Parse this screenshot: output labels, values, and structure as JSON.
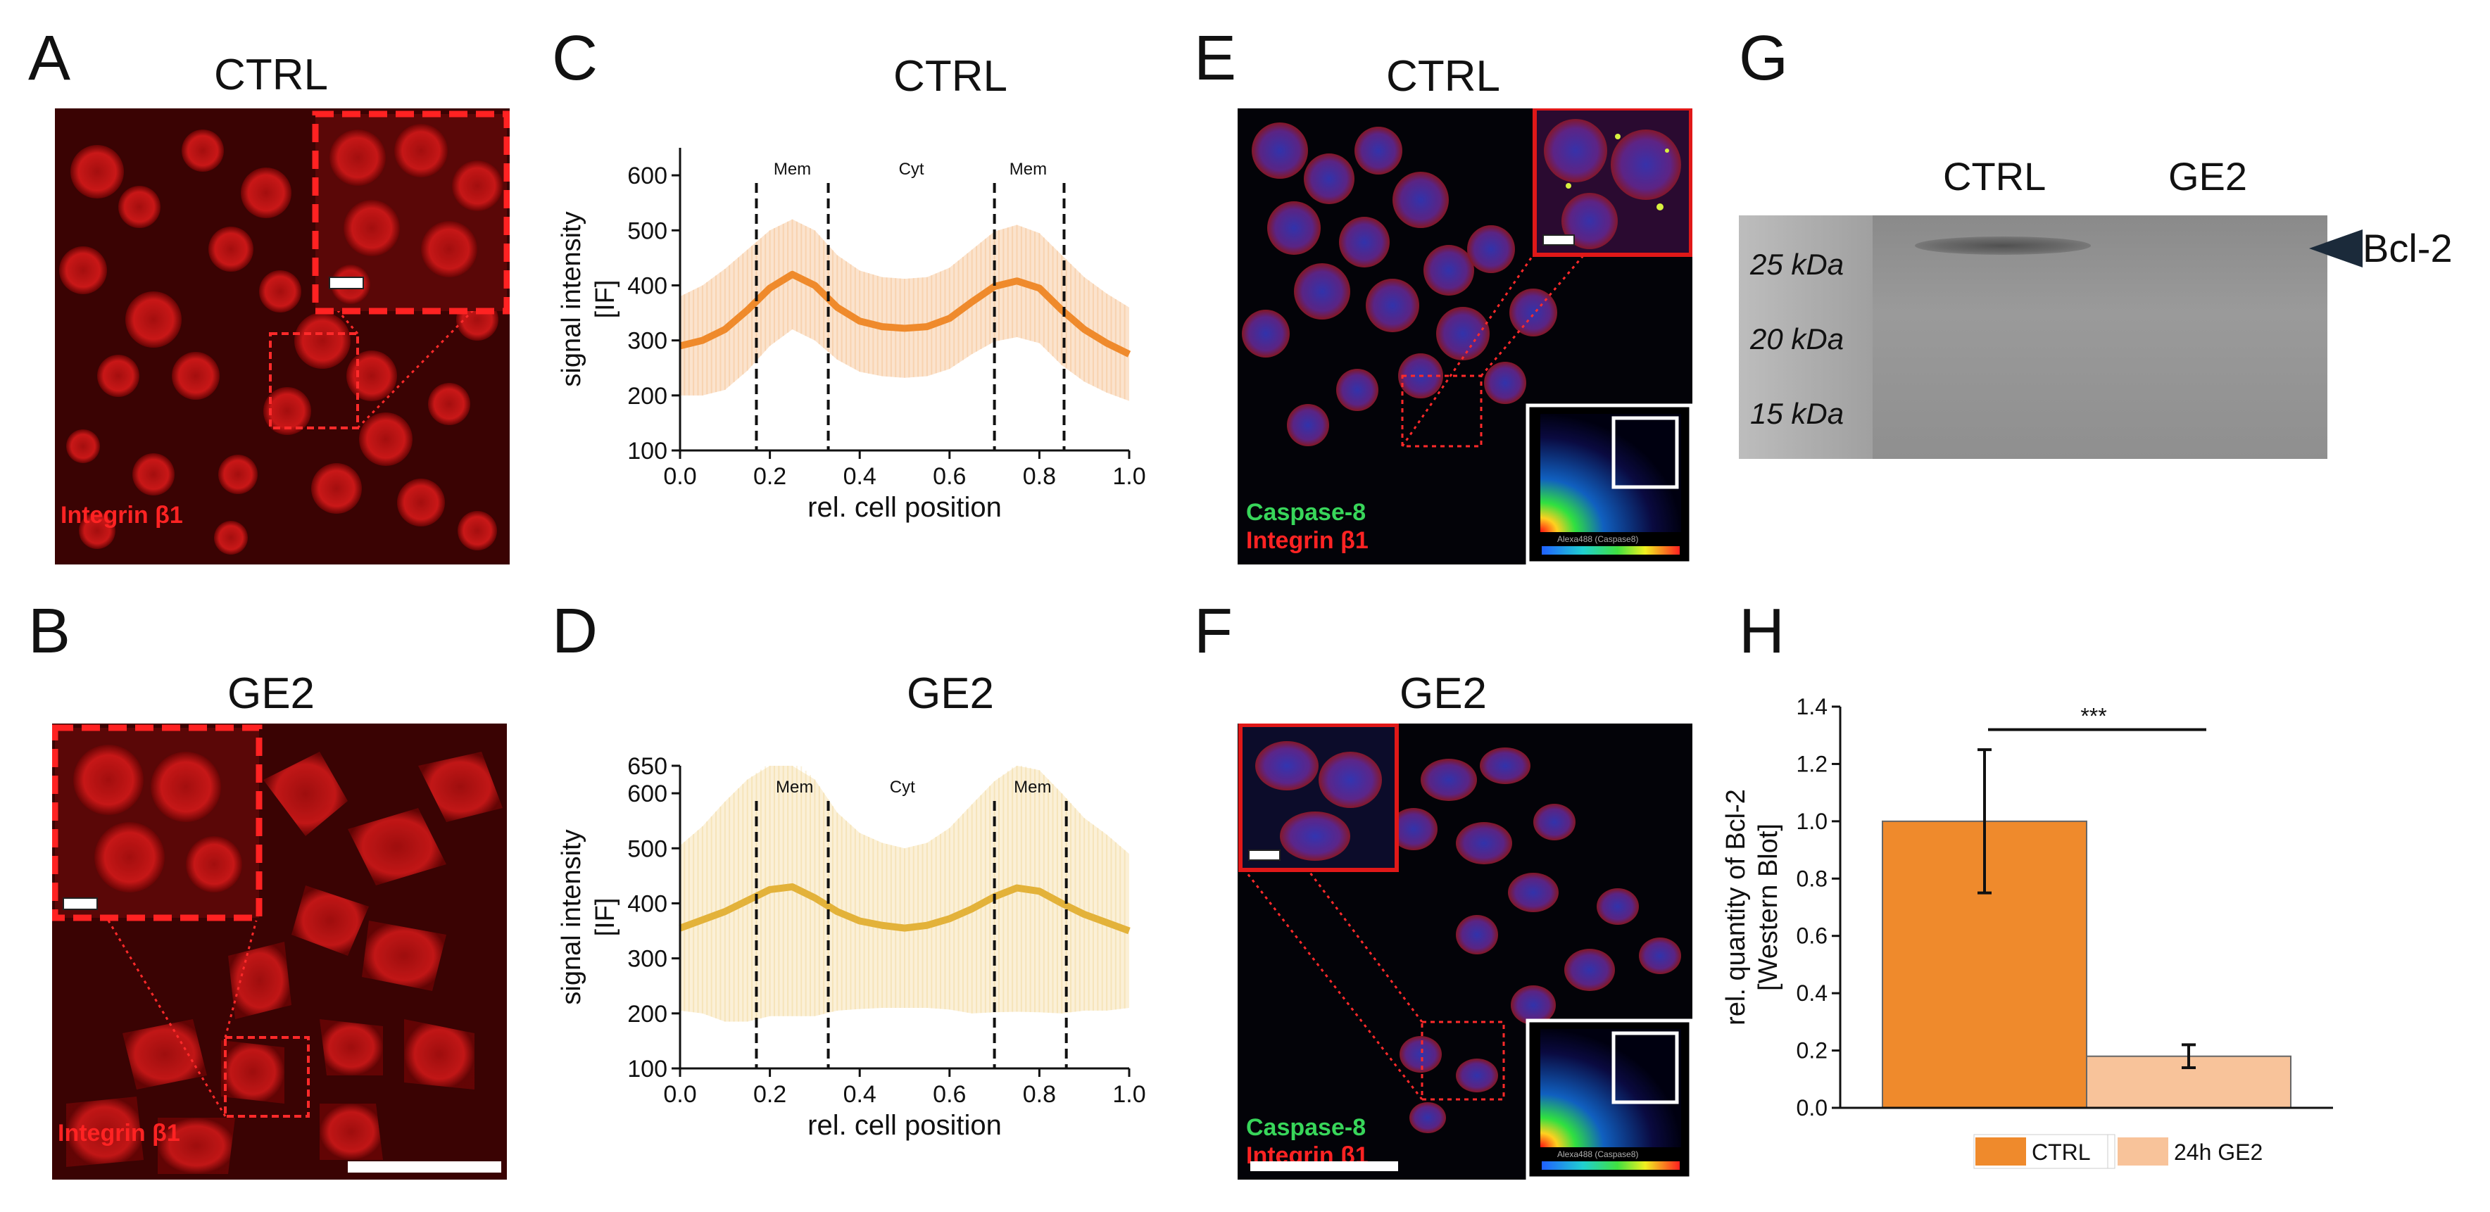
{
  "panels": {
    "A": {
      "letter": "A",
      "title": "CTRL",
      "stain": "Integrin β1"
    },
    "B": {
      "letter": "B",
      "title": "GE2",
      "stain": "Integrin β1"
    },
    "C": {
      "letter": "C",
      "title": "CTRL"
    },
    "D": {
      "letter": "D",
      "title": "GE2"
    },
    "E": {
      "letter": "E",
      "title": "CTRL",
      "stain1": "Caspase-8",
      "stain2": "Integrin β1"
    },
    "F": {
      "letter": "F",
      "title": "GE2",
      "stain1": "Caspase-8",
      "stain2": "Integrin β1"
    },
    "G": {
      "letter": "G"
    },
    "H": {
      "letter": "H"
    }
  },
  "colocalization": {
    "x_axis": "Alexa488 (Caspase8)"
  },
  "western_blot": {
    "lanes": [
      "CTRL",
      "GE2"
    ],
    "markers": [
      "25 kDa",
      "20 kDa",
      "15 kDa"
    ],
    "target": "Bcl-2"
  },
  "chart_data": [
    {
      "id": "C",
      "type": "line",
      "title": "CTRL",
      "xlabel": "rel. cell position",
      "ylabel_line1": "signal intensity",
      "ylabel_line2": "[IF]",
      "xlim": [
        0.0,
        1.0
      ],
      "ylim": [
        100,
        650
      ],
      "xticks": [
        "0.0",
        "0.2",
        "0.4",
        "0.6",
        "0.8",
        "1.0"
      ],
      "yticks": [
        "100",
        "200",
        "300",
        "400",
        "500",
        "600"
      ],
      "color": "#ef8a2c",
      "band_color": "#fbe0c8",
      "x": [
        0.0,
        0.05,
        0.1,
        0.15,
        0.2,
        0.25,
        0.3,
        0.35,
        0.4,
        0.45,
        0.5,
        0.55,
        0.6,
        0.65,
        0.7,
        0.75,
        0.8,
        0.85,
        0.9,
        0.95,
        1.0
      ],
      "mean": [
        290,
        300,
        320,
        355,
        395,
        420,
        400,
        360,
        335,
        325,
        322,
        325,
        340,
        370,
        398,
        408,
        395,
        355,
        320,
        295,
        275
      ],
      "sd": [
        90,
        100,
        110,
        110,
        105,
        100,
        100,
        95,
        92,
        90,
        90,
        90,
        92,
        95,
        100,
        102,
        100,
        100,
        95,
        90,
        85
      ],
      "vlines": [
        0.17,
        0.33,
        0.7,
        0.855
      ],
      "annotations": [
        {
          "text": "Mem",
          "x": 0.25
        },
        {
          "text": "Cyt",
          "x": 0.515
        },
        {
          "text": "Mem",
          "x": 0.775
        }
      ]
    },
    {
      "id": "D",
      "type": "line",
      "title": "GE2",
      "xlabel": "rel. cell position",
      "ylabel_line1": "signal intensity",
      "ylabel_line2": "[IF]",
      "xlim": [
        0.0,
        1.0
      ],
      "ylim": [
        100,
        650
      ],
      "xticks": [
        "0.0",
        "0.2",
        "0.4",
        "0.6",
        "0.8",
        "1.0"
      ],
      "yticks": [
        "100",
        "200",
        "300",
        "400",
        "500",
        "600",
        "650"
      ],
      "color": "#e3b23a",
      "band_color": "#fbeed3",
      "x": [
        0.0,
        0.05,
        0.1,
        0.15,
        0.2,
        0.25,
        0.3,
        0.35,
        0.4,
        0.45,
        0.5,
        0.55,
        0.6,
        0.65,
        0.7,
        0.75,
        0.8,
        0.85,
        0.9,
        0.95,
        1.0
      ],
      "mean": [
        355,
        370,
        385,
        405,
        425,
        430,
        410,
        385,
        368,
        360,
        355,
        360,
        372,
        390,
        412,
        428,
        422,
        400,
        380,
        365,
        350
      ],
      "sd": [
        150,
        170,
        200,
        220,
        230,
        235,
        215,
        180,
        160,
        150,
        145,
        150,
        165,
        190,
        210,
        225,
        220,
        200,
        175,
        160,
        140
      ],
      "vlines": [
        0.17,
        0.33,
        0.7,
        0.86
      ],
      "annotations": [
        {
          "text": "Mem",
          "x": 0.255
        },
        {
          "text": "Cyt",
          "x": 0.495
        },
        {
          "text": "Mem",
          "x": 0.785
        }
      ]
    },
    {
      "id": "H",
      "type": "bar",
      "categories": [
        "CTRL",
        "24h GE2"
      ],
      "values": [
        1.0,
        0.18
      ],
      "errors": [
        0.25,
        0.04
      ],
      "colors": [
        "#ef8a2c",
        "#f8c39a"
      ],
      "ylabel_line1": "rel. quantity of Bcl-2",
      "ylabel_line2": "[Western Blot]",
      "ylim": [
        0.0,
        1.4
      ],
      "yticks": [
        "0.0",
        "0.2",
        "0.4",
        "0.6",
        "0.8",
        "1.0",
        "1.2",
        "1.4"
      ],
      "significance": "***",
      "legend": [
        "CTRL",
        "24h GE2"
      ]
    }
  ]
}
